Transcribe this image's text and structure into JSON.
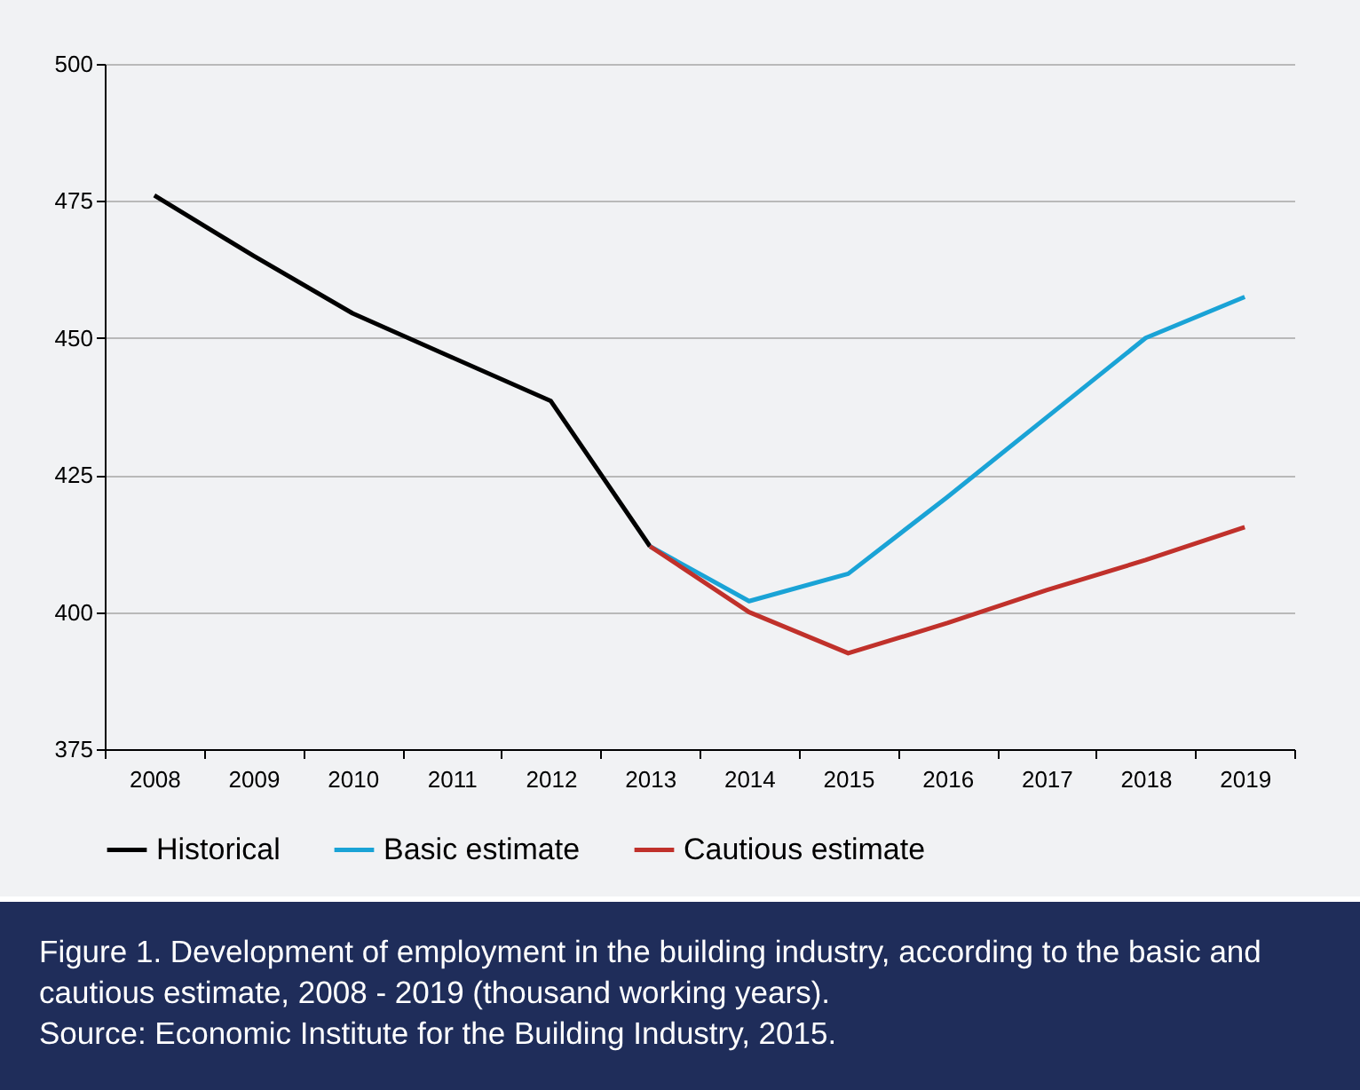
{
  "chart_data": {
    "type": "line",
    "title": "Figure 1. Development of employment in the building industry, according to the basic and cautious estimate, 2008 - 2019 (thousand working years).",
    "annotations": [
      "Source: Economic Institute for the Building Industry, 2015."
    ],
    "categories": [
      "2008",
      "2009",
      "2010",
      "2011",
      "2012",
      "2013",
      "2014",
      "2015",
      "2016",
      "2017",
      "2018",
      "2019"
    ],
    "series": [
      {
        "name": "Historical",
        "color": "#000000",
        "values": [
          476,
          465,
          454.5,
          446.5,
          438.5,
          412,
          null,
          null,
          null,
          null,
          null,
          null
        ]
      },
      {
        "name": "Basic estimate",
        "color": "#1aa3d6",
        "values": [
          null,
          null,
          null,
          null,
          null,
          412,
          402,
          407,
          421,
          435.5,
          450,
          457.5
        ]
      },
      {
        "name": "Cautious estimate",
        "color": "#c0312b",
        "values": [
          null,
          null,
          null,
          null,
          null,
          412,
          400,
          392.5,
          398,
          404,
          409.5,
          415.5
        ]
      }
    ],
    "ylim": [
      375,
      500
    ],
    "yticks": [
      375,
      400,
      425,
      450,
      475,
      500
    ],
    "grid": "y",
    "legend": "bottom",
    "marker": "none",
    "line_style": "solid"
  }
}
